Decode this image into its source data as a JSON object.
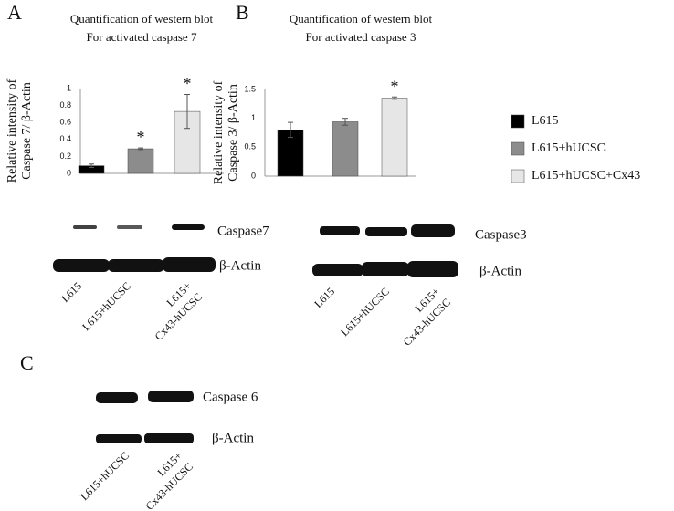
{
  "panels": [
    "A",
    "B",
    "C"
  ],
  "chart_data": [
    {
      "type": "bar",
      "title": [
        "Quantification  of western blot",
        "For activated caspase 7"
      ],
      "ylabel": [
        "Relative intensity of",
        "Caspase 7/ β-Actin"
      ],
      "categories": [
        null
      ],
      "ylim": [
        0,
        1
      ],
      "yticks": [
        0,
        0.2,
        0.4,
        0.6,
        0.8,
        1
      ],
      "grid": false,
      "series": [
        {
          "color": "#000000",
          "values": [
            0.09
          ],
          "errors": [
            0.02
          ]
        },
        {
          "color": "#8c8c8c",
          "values": [
            0.29
          ],
          "errors": [
            0.01
          ],
          "significance": "*"
        },
        {
          "color": "#e6e6e6",
          "values": [
            0.73
          ],
          "errors": [
            0.2
          ],
          "significance": "*"
        }
      ]
    },
    {
      "type": "bar",
      "title": [
        "Quantification  of western blot",
        "For activated caspase 3"
      ],
      "ylabel": [
        "Relative intensity of",
        "Caspase 3/ β-Actin"
      ],
      "categories": [
        null
      ],
      "ylim": [
        0,
        1.5
      ],
      "yticks": [
        0,
        0.5,
        1,
        1.5
      ],
      "grid": false,
      "series": [
        {
          "name": "L615",
          "color": "#000000",
          "values": [
            0.8
          ],
          "errors": [
            0.13
          ]
        },
        {
          "name": "L615+hUCSC",
          "color": "#8c8c8c",
          "values": [
            0.94
          ],
          "errors": [
            0.06
          ]
        },
        {
          "name": "L615+hUCSC+Cx43",
          "color": "#e6e6e6",
          "values": [
            1.35
          ],
          "errors": [
            0.02
          ],
          "significance": "*"
        }
      ]
    }
  ],
  "blots": [
    {
      "bands": [
        "Caspase7",
        "β-Actin"
      ],
      "lanes": [
        [
          "L615"
        ],
        [
          "L615+hUCSC"
        ],
        [
          "L615+",
          "Cx43-hUCSC"
        ]
      ]
    },
    {
      "bands": [
        "Caspase3",
        "β-Actin"
      ],
      "lanes": [
        [
          "L615"
        ],
        [
          "L615+hUCSC"
        ],
        [
          "L615+",
          "Cx43-hUCSC"
        ]
      ]
    },
    {
      "bands": [
        "Caspase 6",
        "β-Actin"
      ],
      "lanes": [
        [
          "L615+hUCSC"
        ],
        [
          "L615+",
          "Cx43-hUCSC"
        ]
      ]
    }
  ]
}
